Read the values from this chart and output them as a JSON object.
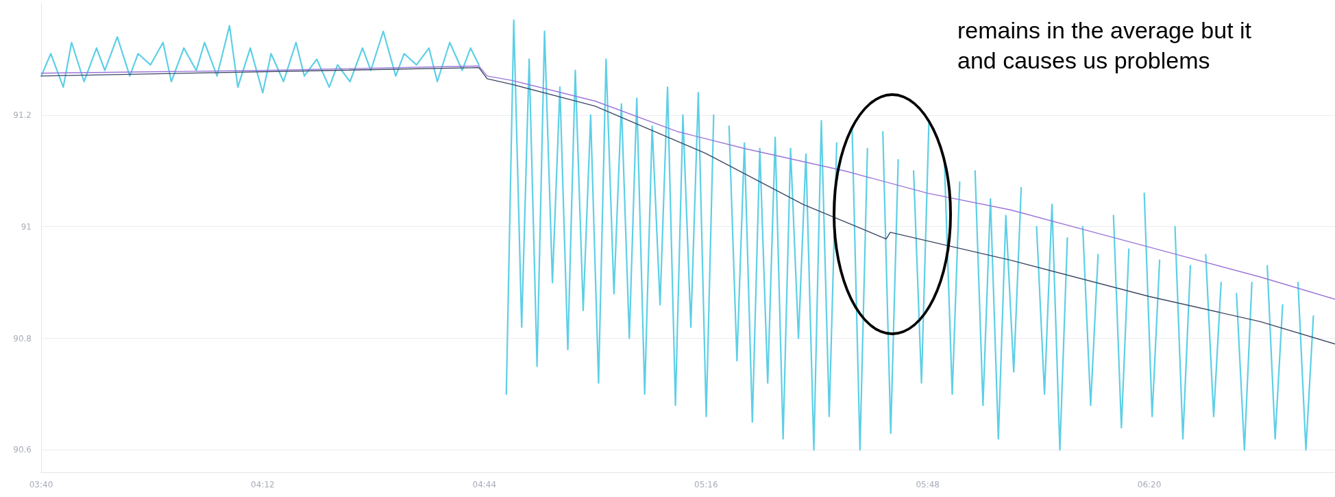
{
  "chart_data": {
    "type": "line",
    "annotations": [
      "remains in the average but it",
      "and causes us problems"
    ],
    "xlim": [
      3.6667,
      6.78
    ],
    "xticks": [
      {
        "value": 3.6667,
        "label": "03:40"
      },
      {
        "value": 4.2,
        "label": "04:12"
      },
      {
        "value": 4.7333,
        "label": "04:44"
      },
      {
        "value": 5.2667,
        "label": "05:16"
      },
      {
        "value": 5.8,
        "label": "05:48"
      },
      {
        "value": 6.3333,
        "label": "06:20"
      }
    ],
    "ylim": [
      90.56,
      91.4
    ],
    "yticks": [
      90.6,
      90.8,
      91,
      91.2
    ],
    "grid": "y",
    "marker": "none",
    "line_style": "solid",
    "series": [
      {
        "color": "#5ccfe6",
        "x": [
          3.667,
          3.69,
          3.72,
          3.74,
          3.77,
          3.8,
          3.82,
          3.85,
          3.88,
          3.9,
          3.93,
          3.96,
          3.98,
          4.01,
          4.04,
          4.06,
          4.09,
          4.12,
          4.14,
          4.17,
          4.2,
          4.22,
          4.25,
          4.28,
          4.3,
          4.33,
          4.36,
          4.38,
          4.41,
          4.44,
          4.46,
          4.49,
          4.52,
          4.54,
          4.57,
          4.6,
          4.62,
          4.65,
          4.68,
          4.7,
          4.72,
          4.73,
          4.749,
          4.767,
          4.786,
          4.804,
          4.823,
          4.841,
          4.86,
          4.878,
          4.897,
          4.915,
          4.934,
          4.952,
          4.971,
          4.989,
          5.008,
          5.026,
          5.045,
          5.063,
          5.082,
          5.1,
          5.119,
          5.137,
          5.156,
          5.174,
          5.193,
          5.211,
          5.23,
          5.248,
          5.267,
          5.285,
          5.304,
          5.322,
          5.341,
          5.359,
          5.378,
          5.396,
          5.415,
          5.433,
          5.452,
          5.47,
          5.489,
          5.507,
          5.526,
          5.544,
          5.563,
          5.581,
          5.6,
          5.618,
          5.637,
          5.655,
          5.674,
          5.692,
          5.711,
          5.729,
          5.748,
          5.766,
          5.785,
          5.803,
          5.822,
          5.84,
          5.859,
          5.877,
          5.896,
          5.914,
          5.933,
          5.951,
          5.97,
          5.988,
          6.007,
          6.025,
          6.044,
          6.062,
          6.081,
          6.099,
          6.118,
          6.136,
          6.155,
          6.173,
          6.192,
          6.21,
          6.229,
          6.247,
          6.266,
          6.284,
          6.303,
          6.321,
          6.34,
          6.358,
          6.377,
          6.395,
          6.414,
          6.432,
          6.451,
          6.469,
          6.488,
          6.506,
          6.525,
          6.543,
          6.562,
          6.58,
          6.599,
          6.617,
          6.636,
          6.654,
          6.673,
          6.691,
          6.71,
          6.728
        ],
        "values": [
          91.27,
          91.31,
          91.25,
          91.33,
          91.26,
          91.32,
          91.28,
          91.34,
          91.27,
          91.31,
          91.29,
          91.33,
          91.26,
          91.32,
          91.28,
          91.33,
          91.27,
          91.36,
          91.25,
          91.32,
          91.24,
          91.31,
          91.26,
          91.33,
          91.27,
          91.3,
          91.25,
          91.29,
          91.26,
          91.32,
          91.28,
          91.35,
          91.27,
          91.31,
          91.29,
          91.32,
          91.26,
          91.33,
          91.28,
          91.32,
          91.29,
          null,
          null,
          null,
          90.7,
          91.37,
          90.82,
          91.3,
          90.75,
          91.35,
          90.9,
          91.25,
          90.78,
          91.28,
          90.85,
          91.2,
          90.72,
          91.3,
          90.88,
          91.22,
          90.8,
          91.23,
          90.7,
          91.18,
          90.86,
          91.25,
          90.68,
          91.2,
          90.82,
          91.24,
          90.66,
          91.2,
          null,
          91.18,
          90.76,
          91.15,
          90.65,
          91.14,
          90.72,
          91.16,
          90.62,
          91.14,
          90.8,
          91.13,
          90.6,
          91.19,
          90.66,
          91.15,
          null,
          91.18,
          90.6,
          91.14,
          null,
          91.17,
          90.63,
          91.12,
          null,
          91.1,
          90.72,
          91.19,
          null,
          91.12,
          90.7,
          91.08,
          null,
          91.1,
          90.68,
          91.05,
          90.62,
          91.02,
          90.74,
          91.07,
          null,
          91.0,
          90.7,
          91.04,
          90.6,
          90.98,
          null,
          91.0,
          90.68,
          90.95,
          null,
          91.02,
          90.64,
          90.96,
          null,
          91.06,
          90.66,
          90.94,
          null,
          91.0,
          90.62,
          90.93,
          null,
          90.95,
          90.66,
          90.9,
          null,
          90.88,
          90.6,
          90.9,
          null,
          90.93,
          90.62,
          90.86,
          null,
          90.9,
          90.6,
          90.84
        ]
      },
      {
        "color": "#9a74d8",
        "x": [
          3.667,
          4.2,
          4.72,
          4.74,
          4.8,
          5.0,
          5.2,
          5.36,
          5.6,
          5.8,
          6.0,
          6.2,
          6.4,
          6.6,
          6.78
        ],
        "values": [
          91.275,
          91.28,
          91.288,
          91.27,
          91.262,
          91.225,
          91.17,
          91.14,
          91.1,
          91.06,
          91.03,
          90.99,
          90.95,
          90.91,
          90.87
        ]
      },
      {
        "color": "#3b4563",
        "x": [
          3.667,
          4.72,
          4.74,
          4.8,
          5.0,
          5.267,
          5.5,
          5.7,
          5.71,
          6.0,
          6.333,
          6.6,
          6.78
        ],
        "values": [
          91.27,
          91.285,
          91.265,
          91.255,
          91.216,
          91.131,
          91.04,
          90.978,
          90.99,
          90.94,
          90.875,
          90.83,
          90.79
        ]
      }
    ]
  }
}
